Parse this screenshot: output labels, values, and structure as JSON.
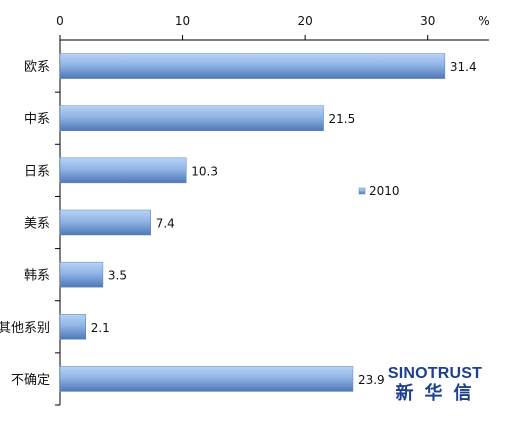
{
  "chart_data": {
    "type": "bar",
    "orientation": "horizontal",
    "categories": [
      "欧系",
      "中系",
      "日系",
      "美系",
      "韩系",
      "其他系别",
      "不确定"
    ],
    "series": [
      {
        "name": "2010",
        "values": [
          31.4,
          21.5,
          10.3,
          7.4,
          3.5,
          2.1,
          23.9
        ],
        "value_labels": [
          "31.4",
          "21.5",
          "10.3",
          "7.4",
          "3.5",
          "2.1",
          "23.9"
        ],
        "color": "#7fa7dc"
      }
    ],
    "xlim": [
      0,
      35
    ],
    "x_ticks": [
      0,
      10,
      20,
      30
    ],
    "x_tick_labels": [
      "0",
      "10",
      "20",
      "30"
    ],
    "unit_label": "%",
    "x_axis_position": "top",
    "grid": false,
    "legend_position": "right"
  },
  "branding": {
    "logo_en": "SINOTRUST",
    "logo_cn": "新华信"
  },
  "colors": {
    "bar_light": "#a7c7ee",
    "bar_dark": "#4f78b6",
    "axis": "#000000",
    "brand": "#1d3f8f"
  }
}
